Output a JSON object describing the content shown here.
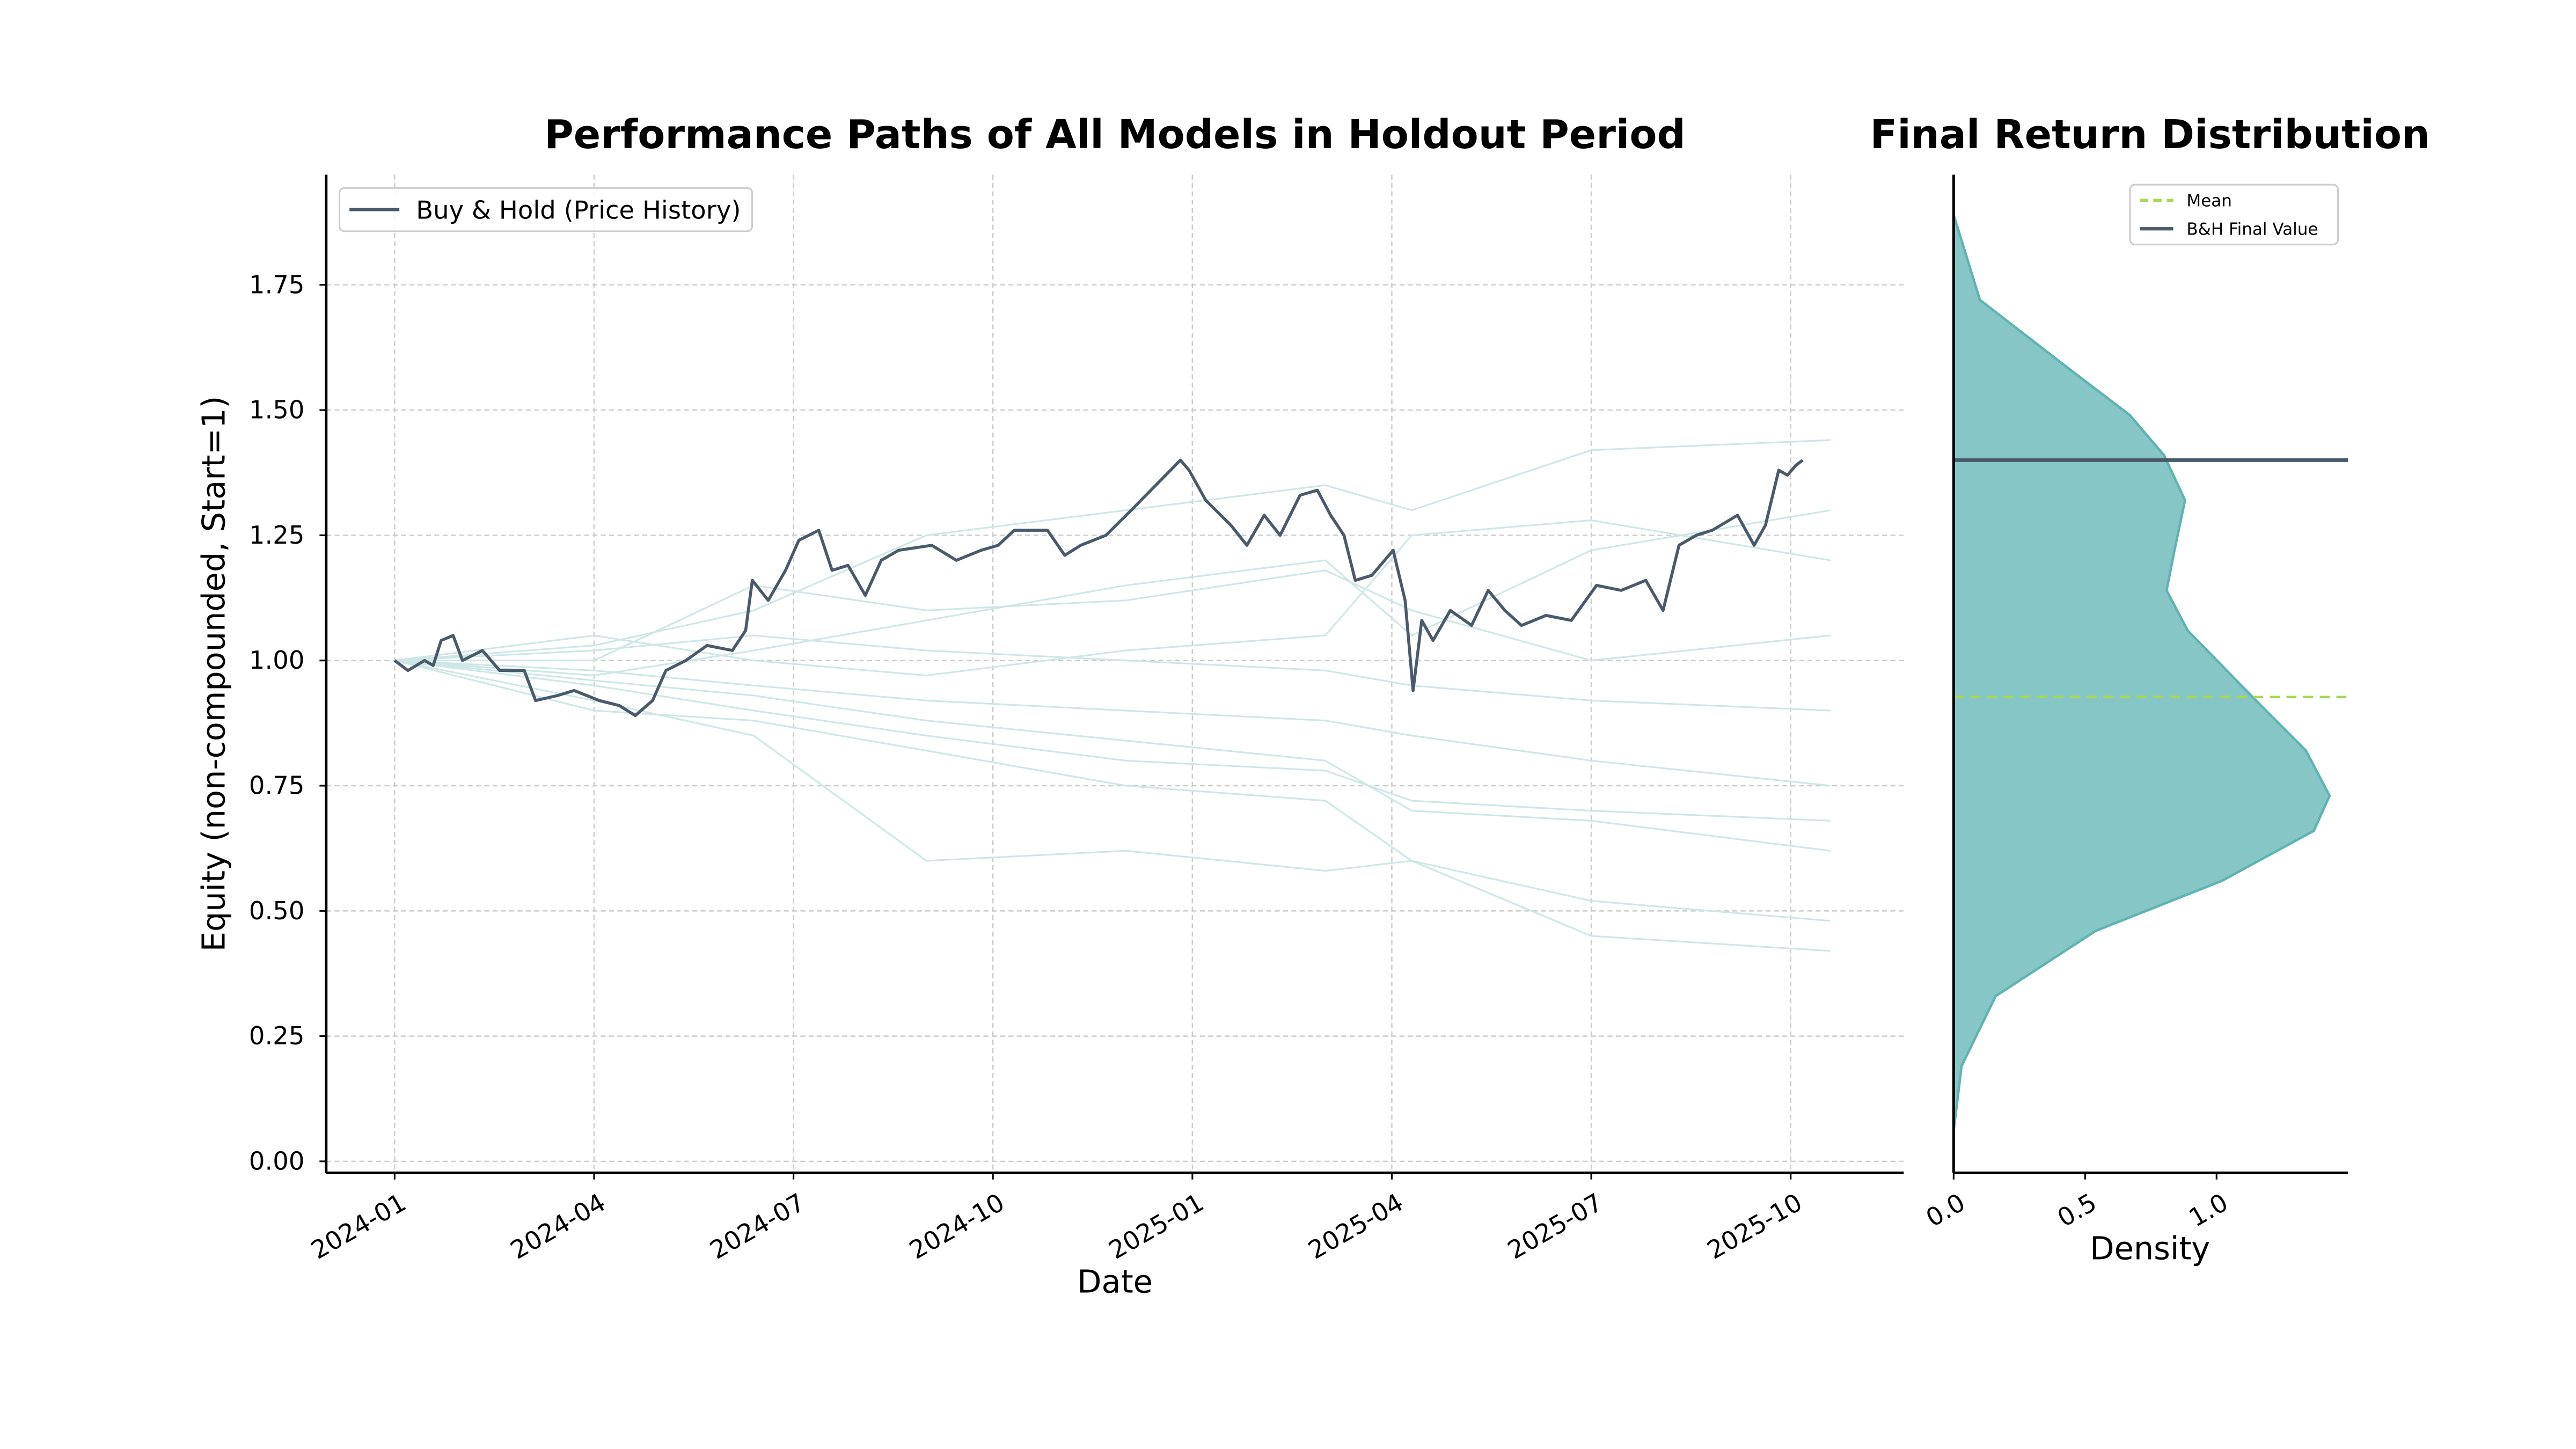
{
  "chart_data": [
    {
      "type": "line",
      "title": "Performance Paths of All Models in Holdout Period",
      "x_label": "Date",
      "y_label": "Equity (non-compounded, Start=1)",
      "xlim": [
        -1.03,
        22.7
      ],
      "xticks": [
        {
          "value": 0,
          "label": "2024-01"
        },
        {
          "value": 3,
          "label": "2024-04"
        },
        {
          "value": 6,
          "label": "2024-07"
        },
        {
          "value": 9,
          "label": "2024-10"
        },
        {
          "value": 12,
          "label": "2025-01"
        },
        {
          "value": 15,
          "label": "2025-04"
        },
        {
          "value": 18,
          "label": "2025-07"
        },
        {
          "value": 21,
          "label": "2025-10"
        }
      ],
      "ylim": [
        -0.023,
        1.97
      ],
      "yticks": [
        {
          "value": 0,
          "label": "0.00"
        },
        0.25,
        {
          "value": 0.5,
          "label": "0.50"
        },
        0.75,
        {
          "value": 1,
          "label": "1.00"
        },
        1.25,
        {
          "value": 1.5,
          "label": "1.50"
        },
        1.75
      ],
      "grid": true,
      "legend": "upper left",
      "series": [
        {
          "color": "#cde6e6",
          "x": [
            0,
            3,
            5.4,
            8,
            11,
            14,
            15.3,
            18,
            21.6
          ],
          "values": [
            1,
            0.97,
            1.02,
            1.08,
            1.15,
            1.2,
            1.05,
            1.22,
            1.3
          ]
        },
        {
          "color": "#cde6e6",
          "x": [
            0,
            3,
            5.4,
            8,
            11,
            14,
            15.3,
            18,
            21.6
          ],
          "values": [
            1,
            0.95,
            0.9,
            0.85,
            0.8,
            0.78,
            0.72,
            0.7,
            0.68
          ]
        },
        {
          "color": "#cde6e6",
          "x": [
            0,
            3,
            5.4,
            8,
            11,
            14,
            15.3,
            18,
            21.6
          ],
          "values": [
            1,
            1.03,
            1.1,
            1.25,
            1.3,
            1.35,
            1.3,
            1.42,
            1.44
          ]
        },
        {
          "color": "#cde6e6",
          "x": [
            0,
            3,
            5.4,
            8,
            11,
            14,
            15.3,
            18,
            21.6
          ],
          "values": [
            1,
            0.92,
            0.85,
            0.6,
            0.62,
            0.58,
            0.6,
            0.52,
            0.48
          ]
        },
        {
          "color": "#cde6e6",
          "x": [
            0,
            3,
            5.4,
            8,
            11,
            14,
            15.3,
            18,
            21.6
          ],
          "values": [
            1,
            0.98,
            0.95,
            0.92,
            0.9,
            0.88,
            0.85,
            0.8,
            0.75
          ]
        },
        {
          "color": "#cde6e6",
          "x": [
            0,
            3,
            5.4,
            8,
            11,
            14,
            15.3,
            18,
            21.6
          ],
          "values": [
            1,
            1.02,
            1.05,
            1.02,
            1.0,
            0.98,
            0.95,
            0.92,
            0.9
          ]
        },
        {
          "color": "#cde6e6",
          "x": [
            0,
            3,
            5.4,
            8,
            11,
            14,
            15.3,
            18,
            21.6
          ],
          "values": [
            1,
            0.96,
            0.93,
            0.88,
            0.84,
            0.8,
            0.7,
            0.68,
            0.62
          ]
        },
        {
          "color": "#cde6e6",
          "x": [
            0,
            3,
            5.4,
            8,
            11,
            14,
            15.3,
            18,
            21.6
          ],
          "values": [
            1,
            1.0,
            1.15,
            1.1,
            1.12,
            1.18,
            1.1,
            1.0,
            1.05
          ]
        },
        {
          "color": "#cde6e6",
          "x": [
            0,
            3,
            5.4,
            8,
            11,
            14,
            15.3,
            18,
            21.6
          ],
          "values": [
            1,
            0.9,
            0.88,
            0.82,
            0.75,
            0.72,
            0.6,
            0.45,
            0.42
          ]
        },
        {
          "color": "#cde6e6",
          "x": [
            0,
            3,
            5.4,
            8,
            11,
            14,
            15.3,
            18,
            21.6
          ],
          "values": [
            1,
            1.05,
            1.0,
            0.97,
            1.02,
            1.05,
            1.25,
            1.28,
            1.2
          ]
        },
        {
          "name": "Buy & Hold (Price History)",
          "color": "#4a5a6a",
          "x": [
            0,
            0.2,
            0.45,
            0.58,
            0.7,
            0.88,
            1.02,
            1.32,
            1.58,
            1.95,
            2.12,
            2.45,
            2.7,
            3.08,
            3.38,
            3.62,
            3.88,
            4.08,
            4.38,
            4.7,
            5.08,
            5.28,
            5.38,
            5.62,
            5.88,
            6.08,
            6.38,
            6.58,
            6.82,
            7.08,
            7.32,
            7.58,
            8.08,
            8.45,
            8.82,
            9.08,
            9.32,
            9.82,
            10.08,
            10.32,
            10.7,
            11.08,
            11.45,
            11.82,
            11.95,
            12.2,
            12.58,
            12.82,
            13.08,
            13.32,
            13.62,
            13.88,
            14.08,
            14.28,
            14.45,
            14.7,
            15.02,
            15.2,
            15.32,
            15.45,
            15.62,
            15.88,
            16.2,
            16.45,
            16.7,
            16.95,
            17.32,
            17.7,
            18.08,
            18.45,
            18.82,
            19.08,
            19.32,
            19.58,
            19.82,
            20.2,
            20.45,
            20.62,
            20.82,
            20.95,
            21.08,
            21.18
          ],
          "values": [
            1.0,
            0.98,
            1.0,
            0.99,
            1.04,
            1.05,
            1.0,
            1.02,
            0.98,
            0.98,
            0.92,
            0.93,
            0.94,
            0.92,
            0.91,
            0.89,
            0.92,
            0.98,
            1.0,
            1.03,
            1.02,
            1.06,
            1.16,
            1.12,
            1.18,
            1.24,
            1.26,
            1.18,
            1.19,
            1.13,
            1.2,
            1.22,
            1.23,
            1.2,
            1.22,
            1.23,
            1.26,
            1.26,
            1.21,
            1.23,
            1.25,
            1.3,
            1.35,
            1.4,
            1.38,
            1.32,
            1.27,
            1.23,
            1.29,
            1.25,
            1.33,
            1.34,
            1.29,
            1.25,
            1.16,
            1.17,
            1.22,
            1.12,
            0.94,
            1.08,
            1.04,
            1.1,
            1.07,
            1.14,
            1.1,
            1.07,
            1.09,
            1.08,
            1.15,
            1.14,
            1.16,
            1.1,
            1.23,
            1.25,
            1.26,
            1.29,
            1.23,
            1.27,
            1.38,
            1.37,
            1.39,
            1.4
          ]
        }
      ]
    },
    {
      "type": "density",
      "title": "Final Return Distribution",
      "x_label": "Density",
      "xlim": [
        0,
        1.5
      ],
      "xticks": [
        {
          "value": 0,
          "label": "0.0"
        },
        0.5,
        {
          "value": 1,
          "label": "1.0"
        }
      ],
      "ylim": [
        -0.023,
        1.97
      ],
      "legend": "upper right",
      "color": "#5fb3b3",
      "y": [
        0.06,
        0.19,
        0.33,
        0.46,
        0.56,
        0.66,
        0.73,
        0.82,
        0.92,
        1.06,
        1.14,
        1.22,
        1.32,
        1.41,
        1.49,
        1.59,
        1.72,
        1.89
      ],
      "values": [
        0,
        0.03,
        0.16,
        0.54,
        1.02,
        1.37,
        1.43,
        1.34,
        1.15,
        0.89,
        0.81,
        0.84,
        0.88,
        0.8,
        0.67,
        0.42,
        0.1,
        0
      ],
      "lines": [
        {
          "name": "Mean",
          "value": 0.927,
          "color": "#a6d854",
          "style": "dashed"
        },
        {
          "name": "B&H Final Value",
          "value": 1.4,
          "color": "#4a5a6a",
          "style": "solid"
        }
      ]
    }
  ]
}
